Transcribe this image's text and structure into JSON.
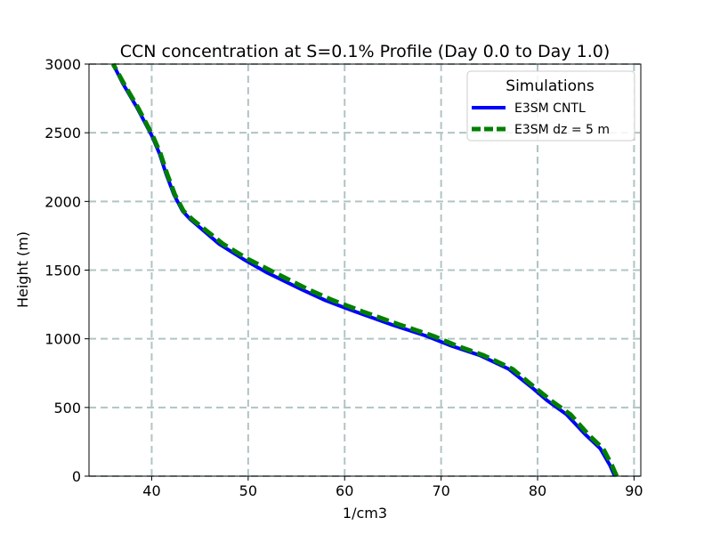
{
  "chart_data": {
    "type": "line",
    "title": "CCN concentration at S=0.1% Profile (Day 0.0 to Day 1.0)",
    "xlabel": "1/cm3",
    "ylabel": "Height (m)",
    "xlim": [
      33.5,
      90.7
    ],
    "ylim": [
      0,
      3000
    ],
    "xticks": [
      40,
      50,
      60,
      70,
      80,
      90
    ],
    "yticks": [
      0,
      500,
      1000,
      1500,
      2000,
      2500,
      3000
    ],
    "grid": true,
    "legend": {
      "title": "Simulations",
      "placement": "top-right"
    },
    "series": [
      {
        "name": "E3SM CNTL",
        "color": "#0000ff",
        "style": "solid",
        "x": [
          88.0,
          87.5,
          86.5,
          85.0,
          83.0,
          81.0,
          79.5,
          77.0,
          74.0,
          71.0,
          68.5,
          65.0,
          61.0,
          58.0,
          55.5,
          52.0,
          49.5,
          47.0,
          45.5,
          44.0,
          43.2,
          42.3,
          41.5,
          40.8,
          40.0,
          38.5,
          37.0,
          36.0
        ],
        "y": [
          0,
          80,
          200,
          300,
          450,
          550,
          640,
          780,
          880,
          950,
          1020,
          1100,
          1200,
          1280,
          1360,
          1480,
          1580,
          1690,
          1780,
          1870,
          1930,
          2050,
          2200,
          2350,
          2480,
          2680,
          2860,
          3000
        ]
      },
      {
        "name": "E3SM dz = 5 m",
        "color": "#008000",
        "style": "dashed",
        "x": [
          88.2,
          87.7,
          86.8,
          85.3,
          83.4,
          81.4,
          79.8,
          77.4,
          74.4,
          71.6,
          69.2,
          65.8,
          61.8,
          58.8,
          56.2,
          52.8,
          50.0,
          47.4,
          45.8,
          44.2,
          43.3,
          42.4,
          41.6,
          40.9,
          40.1,
          38.6,
          37.1,
          36.0
        ],
        "y": [
          0,
          80,
          200,
          300,
          450,
          550,
          640,
          780,
          880,
          950,
          1020,
          1100,
          1200,
          1280,
          1360,
          1480,
          1580,
          1690,
          1780,
          1870,
          1930,
          2050,
          2200,
          2350,
          2480,
          2680,
          2860,
          3000
        ]
      }
    ]
  }
}
